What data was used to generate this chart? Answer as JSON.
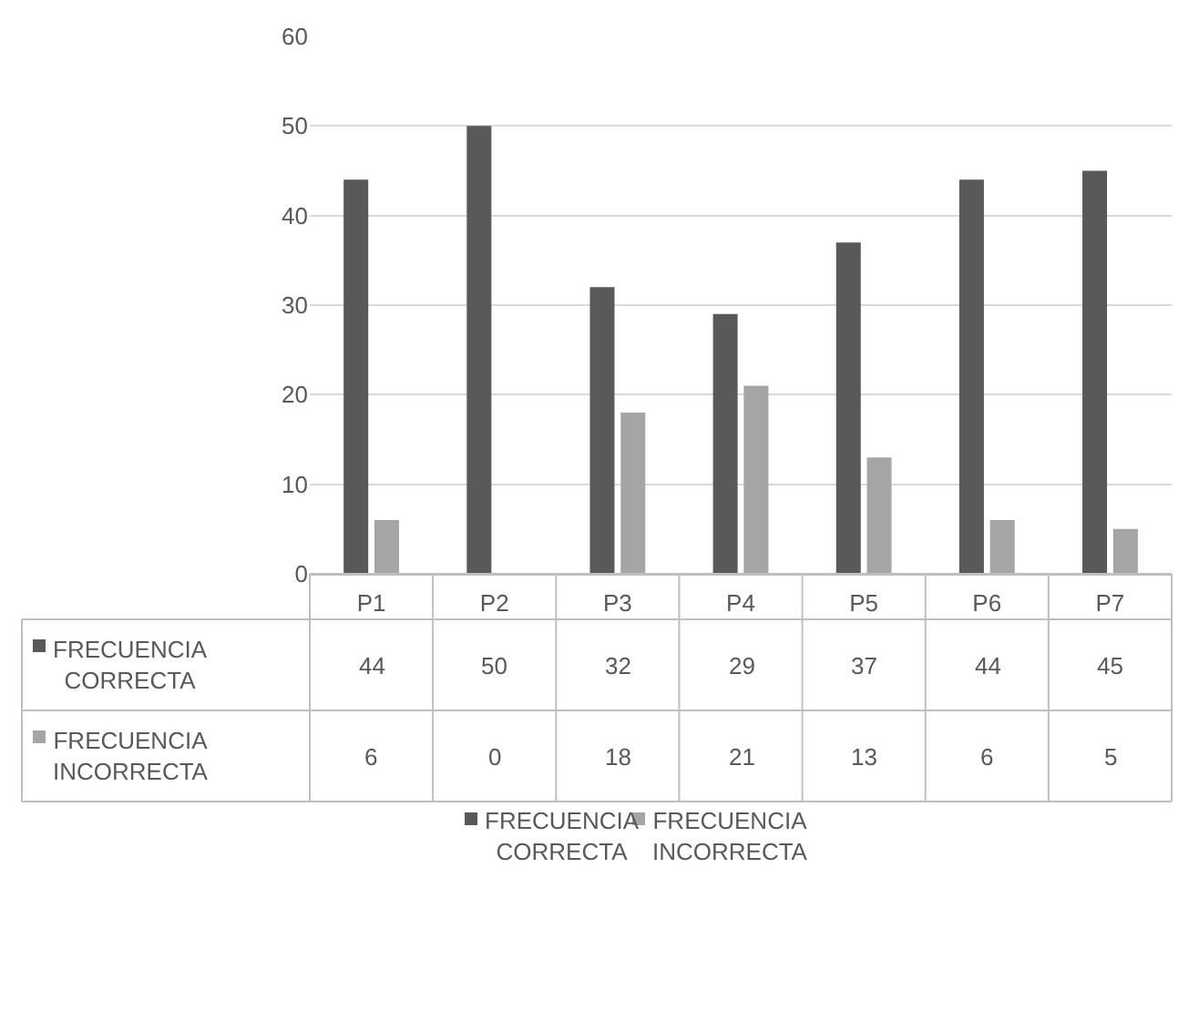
{
  "chart_data": {
    "type": "bar",
    "categories": [
      "P1",
      "P2",
      "P3",
      "P4",
      "P5",
      "P6",
      "P7"
    ],
    "series": [
      {
        "name": "FRECUENCIA CORRECTA",
        "color": "#595959",
        "values": [
          44,
          50,
          32,
          29,
          37,
          44,
          45
        ]
      },
      {
        "name": "FRECUENCIA INCORRECTA",
        "color": "#a5a5a5",
        "values": [
          6,
          0,
          18,
          21,
          13,
          6,
          5
        ]
      }
    ],
    "ylim": [
      0,
      60
    ],
    "yticks": [
      0,
      10,
      20,
      30,
      40,
      50,
      60
    ],
    "grid": "y",
    "legend": "bottom",
    "data_labels": true
  }
}
